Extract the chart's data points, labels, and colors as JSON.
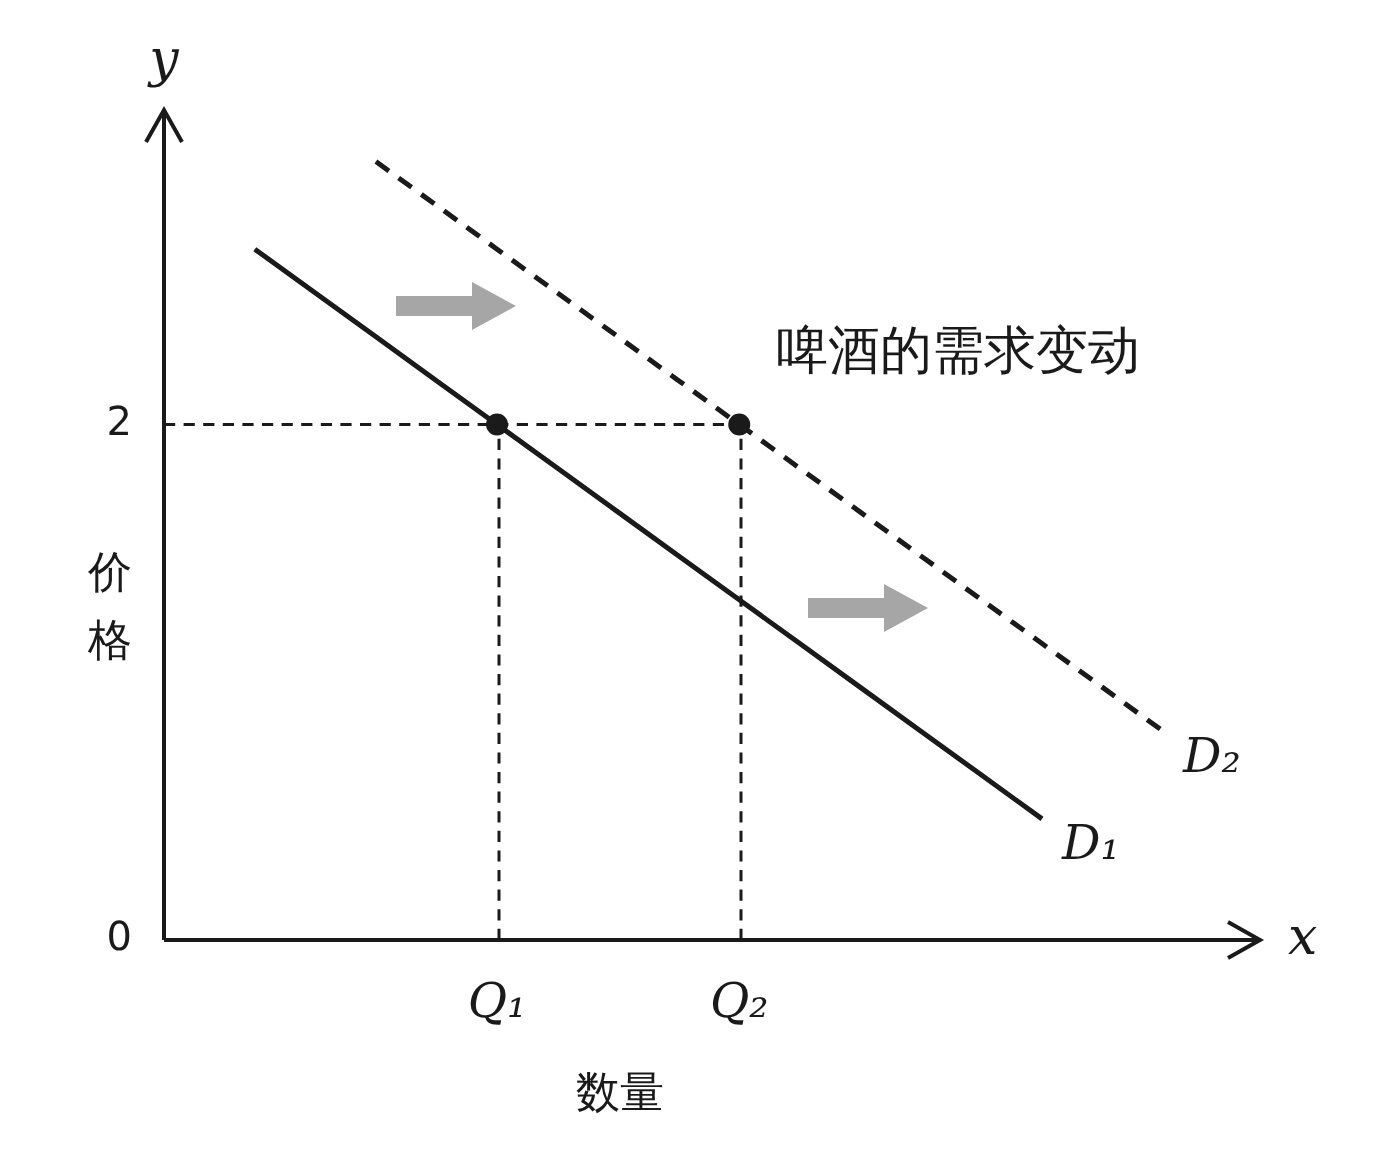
{
  "chart_data": {
    "type": "line",
    "title": "啤酒的需求变动",
    "xlabel": "数量",
    "ylabel": "价格",
    "categories": [
      null,
      null,
      null,
      null,
      "Q₁",
      null,
      null,
      null,
      "Q₂",
      null,
      null,
      null,
      null,
      null,
      null,
      null,
      null
    ],
    "ylim": [
      0,
      3.22
    ],
    "yticks": [
      0,
      2
    ],
    "series": [
      {
        "name": "D₁",
        "color": "#1a1a1a",
        "line_style": "solid",
        "values": [
          2.68,
          2.51,
          2.34,
          2.17,
          2.0,
          1.83,
          1.66,
          1.49,
          1.32,
          1.15,
          0.98,
          0.81,
          0.64,
          0.47,
          null,
          null,
          null
        ]
      },
      {
        "name": "D₂",
        "color": "#1a1a1a",
        "line_style": "dashed",
        "values": [
          null,
          null,
          3.02,
          2.85,
          2.68,
          2.51,
          2.34,
          2.17,
          2.0,
          1.83,
          1.66,
          1.49,
          1.32,
          1.15,
          0.98,
          0.81,
          null
        ]
      },
      {
        "type": "scatter",
        "color": "#1a1a1a",
        "marker": "circle",
        "values": [
          null,
          null,
          null,
          null,
          2,
          null,
          null,
          null,
          2,
          null,
          null,
          null,
          null,
          null,
          null,
          null,
          null
        ]
      }
    ],
    "ref_lines": [
      {
        "axis": "y",
        "value": 2,
        "line_style": "dashed"
      }
    ],
    "annotations": [
      "x",
      "y"
    ],
    "grid": false,
    "legend": false
  }
}
